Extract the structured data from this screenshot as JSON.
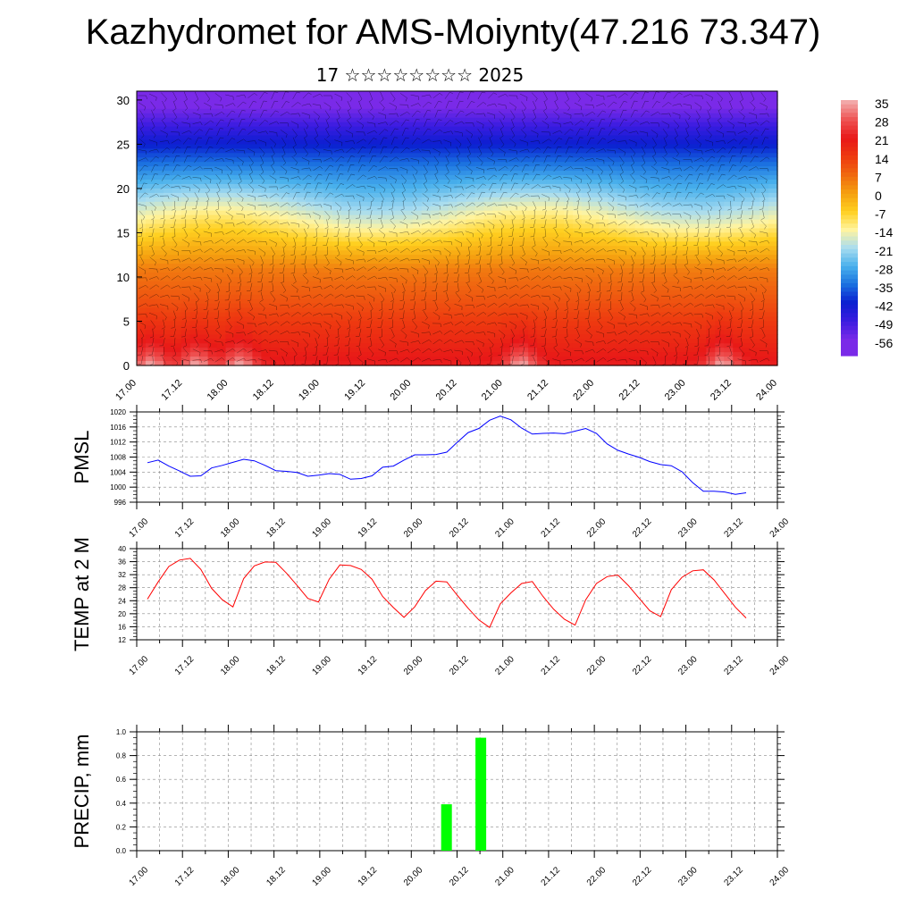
{
  "header": {
    "title": "Kazhydromet for AMS-Moiynty(47.216 73.347)",
    "subtitle": "17 ☆☆☆☆☆☆☆☆ 2025"
  },
  "colors": {
    "pmsl_line": "#0000ff",
    "temp_line": "#ff0000",
    "precip_bar": "#00ff00",
    "grid": "#999999"
  },
  "time_axis": {
    "labels": [
      "17.00",
      "17.12",
      "18.00",
      "18.12",
      "19.00",
      "19.12",
      "20.00",
      "20.12",
      "21.00",
      "21.12",
      "22.00",
      "22.12",
      "23.00",
      "23.12",
      "24.00"
    ]
  },
  "chart_data": [
    {
      "type": "heatmap",
      "title": "Kazhydromet for AMS-Moiynty(47.216 73.347)",
      "description_units": "temperature, °C",
      "y_ticks": [
        0,
        5,
        10,
        15,
        20,
        25,
        30
      ],
      "ylim": [
        0,
        31
      ],
      "x_ticks": [
        "17.00",
        "17.12",
        "18.00",
        "18.12",
        "19.00",
        "19.12",
        "20.00",
        "20.12",
        "21.00",
        "21.12",
        "22.00",
        "22.12",
        "23.00",
        "23.12",
        "24.00"
      ],
      "colorbar_labels": [
        "35",
        "28",
        "21",
        "14",
        "7",
        "0",
        "-7",
        "-14",
        "-21",
        "-28",
        "-35",
        "-42",
        "-49",
        "-56"
      ],
      "colorbar_values": [
        35,
        28,
        21,
        14,
        7,
        0,
        -7,
        -14,
        -21,
        -28,
        -35,
        -42,
        -49,
        -56
      ],
      "colorbar_colors": [
        "#f2a8a8",
        "#ee5050",
        "#e81818",
        "#ee3a10",
        "#f06a10",
        "#f5a010",
        "#ffd020",
        "#fff4a0",
        "#a8dcf0",
        "#48b0ec",
        "#1a70e0",
        "#0a1ed0",
        "#3a1ce0",
        "#7a2ae8"
      ],
      "surface_warm_peaks_x": [
        0.3,
        1.3,
        2.25,
        8.4,
        12.8
      ],
      "legend": "right"
    },
    {
      "type": "line",
      "ylabel": "PMSL",
      "ylim": [
        996,
        1020
      ],
      "y_ticks": [
        996,
        1000,
        1004,
        1008,
        1012,
        1016,
        1020
      ],
      "x_ticks": [
        "17.00",
        "17.12",
        "18.00",
        "18.12",
        "19.00",
        "19.12",
        "20.00",
        "20.12",
        "21.00",
        "21.12",
        "22.00",
        "22.12",
        "23.00",
        "23.12",
        "24.00"
      ],
      "series": [
        {
          "values": [
            1006.5,
            1007.2,
            1005.6,
            1004.3,
            1002.9,
            1003.0,
            1005.1,
            1005.8,
            1006.6,
            1007.4,
            1007.0,
            1005.8,
            1004.4,
            1004.2,
            1003.9,
            1002.9,
            1003.2,
            1003.6,
            1003.4,
            1002.1,
            1002.3,
            1003.0,
            1005.3,
            1005.6,
            1007.2,
            1008.6,
            1008.6,
            1008.7,
            1009.3,
            1012.0,
            1014.5,
            1015.6,
            1017.8,
            1018.9,
            1017.9,
            1015.7,
            1014.1,
            1014.3,
            1014.4,
            1014.2,
            1014.9,
            1015.6,
            1014.3,
            1011.5,
            1009.8,
            1008.8,
            1007.9,
            1006.8,
            1006.0,
            1005.7,
            1004.1,
            1001.2,
            998.9,
            998.9,
            998.7,
            998.1,
            998.5
          ]
        }
      ]
    },
    {
      "type": "line",
      "ylabel": "TEMP at 2 M",
      "ylim": [
        12,
        40
      ],
      "y_ticks": [
        12,
        16,
        20,
        24,
        28,
        32,
        36,
        40
      ],
      "x_ticks": [
        "17.00",
        "17.12",
        "18.00",
        "18.12",
        "19.00",
        "19.12",
        "20.00",
        "20.12",
        "21.00",
        "21.12",
        "22.00",
        "22.12",
        "23.00",
        "23.12",
        "24.00"
      ],
      "series": [
        {
          "values": [
            24.5,
            29.8,
            34.5,
            36.5,
            37.0,
            33.6,
            27.8,
            24.3,
            22.1,
            30.8,
            34.7,
            35.9,
            35.8,
            32.5,
            28.7,
            24.7,
            23.6,
            30.6,
            35.0,
            34.8,
            33.6,
            30.6,
            25.3,
            21.9,
            18.9,
            22.1,
            27.1,
            30.0,
            29.8,
            25.6,
            21.7,
            18.1,
            15.8,
            23.0,
            26.4,
            29.3,
            29.9,
            25.3,
            21.4,
            18.3,
            16.5,
            24.3,
            29.3,
            31.4,
            31.9,
            28.6,
            24.7,
            20.9,
            19.1,
            27.4,
            31.2,
            33.2,
            33.5,
            30.4,
            26.2,
            22.0,
            18.7
          ]
        }
      ]
    },
    {
      "type": "bar",
      "ylabel": "PRECIP, mm",
      "ylim": [
        0,
        1.0
      ],
      "y_ticks": [
        "0.0",
        "0.2",
        "0.4",
        "0.6",
        "0.8",
        "1.0"
      ],
      "x_ticks": [
        "17.00",
        "17.12",
        "18.00",
        "18.12",
        "19.00",
        "19.12",
        "20.00",
        "20.12",
        "21.00",
        "21.12",
        "22.00",
        "22.12",
        "23.00",
        "23.12",
        "24.00"
      ],
      "series": [
        {
          "points": [
            {
              "x": 19.5,
              "value": 0.39
            },
            {
              "x": 22.5,
              "value": 0.95
            }
          ]
        }
      ]
    }
  ]
}
